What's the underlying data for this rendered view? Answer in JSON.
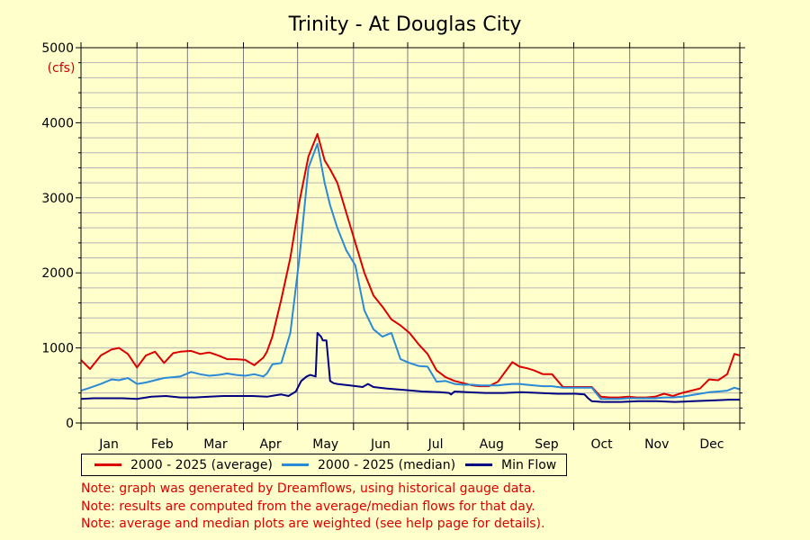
{
  "chart_data": {
    "type": "line",
    "title": "Trinity - At Douglas City",
    "y_unit": "(cfs)",
    "ylim": [
      0,
      5000
    ],
    "yticks": [
      0,
      1000,
      2000,
      3000,
      4000,
      5000
    ],
    "xlim": [
      1,
      366
    ],
    "months": [
      "Jan",
      "Feb",
      "Mar",
      "Apr",
      "May",
      "Jun",
      "Jul",
      "Aug",
      "Sep",
      "Oct",
      "Nov",
      "Dec"
    ],
    "grid": true,
    "legend_position": "bottom",
    "series": [
      {
        "name": "2000 - 2025 (average)",
        "color": "#dd0000",
        "x": [
          1,
          6,
          12,
          18,
          22,
          27,
          32,
          37,
          42,
          47,
          52,
          56,
          62,
          67,
          72,
          77,
          82,
          87,
          92,
          97,
          102,
          104,
          107,
          112,
          117,
          122,
          127,
          132,
          136,
          139,
          143,
          148,
          153,
          158,
          163,
          168,
          173,
          178,
          183,
          188,
          193,
          198,
          203,
          208,
          213,
          218,
          222,
          227,
          232,
          235,
          240,
          244,
          248,
          252,
          257,
          262,
          268,
          274,
          279,
          284,
          289,
          294,
          299,
          304,
          309,
          314,
          319,
          324,
          329,
          334,
          339,
          344,
          349,
          354,
          359,
          363,
          366
        ],
        "values": [
          840,
          720,
          900,
          980,
          1000,
          920,
          740,
          900,
          950,
          800,
          930,
          950,
          960,
          920,
          940,
          900,
          850,
          850,
          840,
          770,
          870,
          950,
          1150,
          1650,
          2200,
          2950,
          3550,
          3850,
          3500,
          3380,
          3200,
          2800,
          2400,
          2000,
          1700,
          1550,
          1380,
          1300,
          1200,
          1050,
          920,
          700,
          610,
          560,
          530,
          500,
          490,
          490,
          550,
          650,
          810,
          750,
          730,
          700,
          650,
          650,
          480,
          480,
          480,
          480,
          350,
          340,
          340,
          350,
          340,
          340,
          350,
          390,
          360,
          400,
          430,
          460,
          580,
          570,
          650,
          920,
          900
        ]
      },
      {
        "name": "2000 - 2025 (median)",
        "color": "#2a8ad6",
        "x": [
          1,
          6,
          12,
          18,
          22,
          27,
          32,
          37,
          42,
          47,
          52,
          56,
          62,
          67,
          72,
          77,
          82,
          87,
          92,
          97,
          102,
          104,
          107,
          112,
          117,
          122,
          127,
          132,
          136,
          139,
          143,
          148,
          153,
          158,
          163,
          168,
          173,
          178,
          183,
          188,
          193,
          198,
          203,
          208,
          213,
          218,
          222,
          227,
          232,
          235,
          240,
          244,
          248,
          252,
          257,
          262,
          268,
          274,
          279,
          284,
          289,
          294,
          299,
          304,
          309,
          314,
          319,
          324,
          329,
          334,
          339,
          344,
          349,
          354,
          359,
          363,
          366
        ],
        "values": [
          430,
          470,
          520,
          580,
          570,
          600,
          520,
          540,
          570,
          600,
          610,
          620,
          680,
          650,
          630,
          640,
          660,
          640,
          630,
          650,
          620,
          660,
          780,
          800,
          1200,
          2200,
          3400,
          3720,
          3200,
          2900,
          2600,
          2300,
          2100,
          1500,
          1250,
          1150,
          1200,
          850,
          800,
          760,
          750,
          550,
          560,
          520,
          510,
          510,
          500,
          500,
          500,
          510,
          520,
          520,
          510,
          500,
          490,
          490,
          470,
          470,
          470,
          470,
          320,
          320,
          320,
          330,
          330,
          330,
          330,
          340,
          340,
          350,
          370,
          390,
          410,
          420,
          430,
          470,
          450
        ]
      },
      {
        "name": "Min Flow",
        "color": "#000080",
        "x": [
          1,
          8,
          16,
          24,
          32,
          40,
          48,
          56,
          64,
          72,
          80,
          88,
          96,
          104,
          109,
          112,
          116,
          120,
          123,
          126,
          128,
          131,
          132,
          134,
          135,
          137,
          139,
          141,
          143,
          150,
          157,
          160,
          163,
          170,
          180,
          190,
          200,
          205,
          206,
          208,
          215,
          225,
          235,
          245,
          255,
          265,
          275,
          280,
          282,
          284,
          290,
          300,
          310,
          320,
          330,
          340,
          350,
          360,
          366
        ],
        "values": [
          320,
          330,
          330,
          330,
          320,
          350,
          360,
          340,
          340,
          350,
          360,
          360,
          360,
          350,
          370,
          380,
          360,
          420,
          560,
          620,
          640,
          620,
          1200,
          1150,
          1100,
          1100,
          560,
          530,
          520,
          500,
          480,
          520,
          480,
          460,
          440,
          420,
          410,
          400,
          380,
          420,
          410,
          400,
          400,
          410,
          400,
          390,
          390,
          380,
          330,
          290,
          280,
          280,
          290,
          290,
          280,
          290,
          300,
          310,
          310
        ]
      }
    ],
    "notes": [
      "Note: graph was generated by Dreamflows, using historical gauge data.",
      "Note: results are computed from the average/median flows for that day.",
      "Note: average and median plots are weighted (see help page for details)."
    ]
  }
}
